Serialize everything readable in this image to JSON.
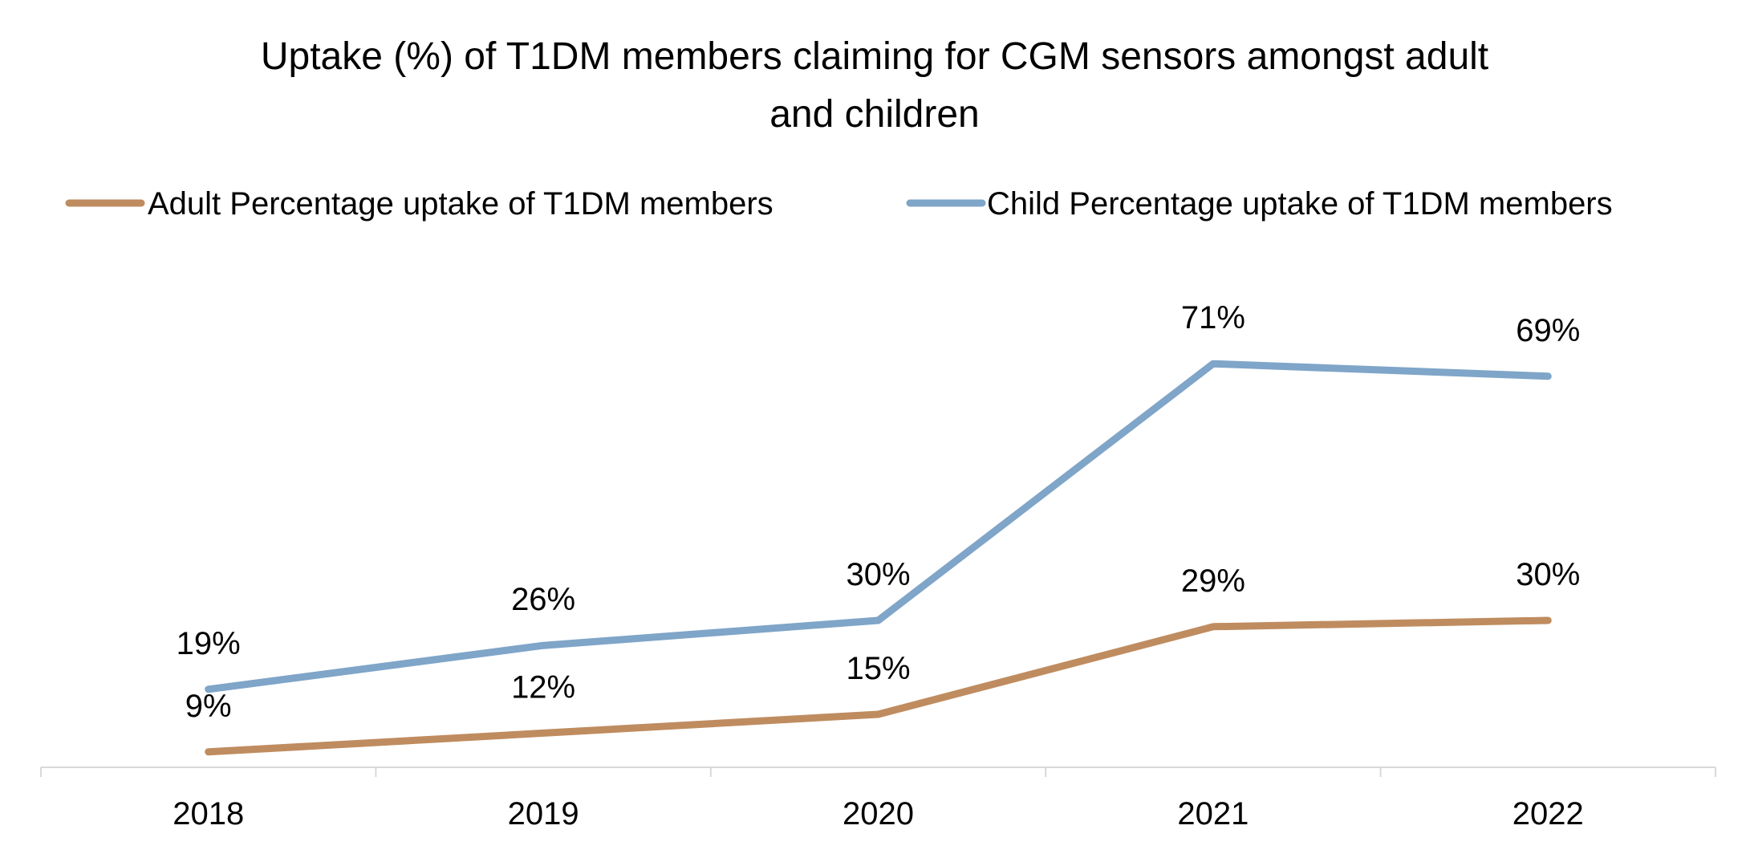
{
  "chart_data": {
    "type": "line",
    "title_lines": [
      "Uptake (%) of T1DM members claiming for CGM sensors amongst adult",
      "and children"
    ],
    "categories": [
      "2018",
      "2019",
      "2020",
      "2021",
      "2022"
    ],
    "series": [
      {
        "name": "Adult Percentage uptake of T1DM members",
        "values": [
          9,
          12,
          15,
          29,
          30
        ],
        "labels": [
          "9%",
          "12%",
          "15%",
          "29%",
          "30%"
        ],
        "color": "#bf8c60"
      },
      {
        "name": "Child Percentage uptake of T1DM members",
        "values": [
          19,
          26,
          30,
          71,
          69
        ],
        "labels": [
          "19%",
          "26%",
          "30%",
          "71%",
          "69%"
        ],
        "color": "#7fa5c8"
      }
    ],
    "legend_position": "top",
    "grid": false,
    "y_axis_visible": false,
    "axis_color": "#d9d9d9"
  }
}
